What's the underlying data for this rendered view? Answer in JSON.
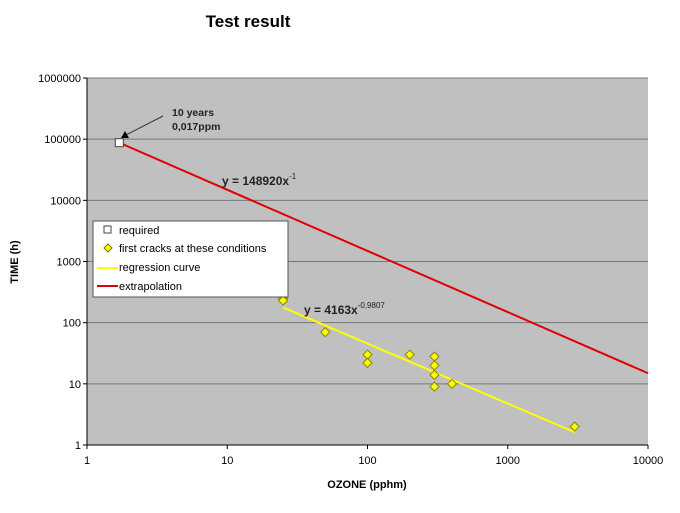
{
  "chart_data": {
    "type": "scatter",
    "title": "Test result",
    "xlabel": "OZONE (pphm)",
    "ylabel": "TIME (h)",
    "xscale": "log",
    "yscale": "log",
    "xlim": [
      1,
      10000
    ],
    "ylim": [
      1,
      1000000
    ],
    "x_ticks": [
      "1",
      "10",
      "100",
      "1000",
      "10000"
    ],
    "y_ticks": [
      "1",
      "10",
      "100",
      "1000",
      "10000",
      "100000",
      "1000000"
    ],
    "grid": "horizontal",
    "legend_position": "left-middle",
    "series": [
      {
        "name": "required",
        "type": "scatter",
        "marker": "square",
        "color": "#ffffff",
        "points": [
          [
            1.7,
            87600
          ]
        ]
      },
      {
        "name": "first cracks at these conditions",
        "type": "scatter",
        "marker": "diamond",
        "color": "#ffff00",
        "points": [
          [
            25,
            245
          ],
          [
            25,
            230
          ],
          [
            50,
            70
          ],
          [
            100,
            30
          ],
          [
            100,
            22
          ],
          [
            200,
            30
          ],
          [
            300,
            28
          ],
          [
            300,
            20
          ],
          [
            300,
            14
          ],
          [
            300,
            9
          ],
          [
            400,
            10
          ],
          [
            3000,
            2
          ]
        ]
      },
      {
        "name": "regression curve",
        "type": "line",
        "color": "#ffff00",
        "formula": {
          "a": 4163,
          "b": -0.9807
        },
        "x_range": [
          25,
          3000
        ]
      },
      {
        "name": "extrapolation",
        "type": "line",
        "color": "#e00000",
        "formula": {
          "a": 148920,
          "b": -1
        },
        "x_range": [
          1.7,
          10000
        ]
      }
    ],
    "annotations": {
      "required_line1": "10 years",
      "required_line2": "0,017ppm",
      "extrapolation_eq": "y = 148920x",
      "extrapolation_exp": "-1",
      "regression_eq": "y = 4163x",
      "regression_exp": "-0,9807"
    }
  }
}
